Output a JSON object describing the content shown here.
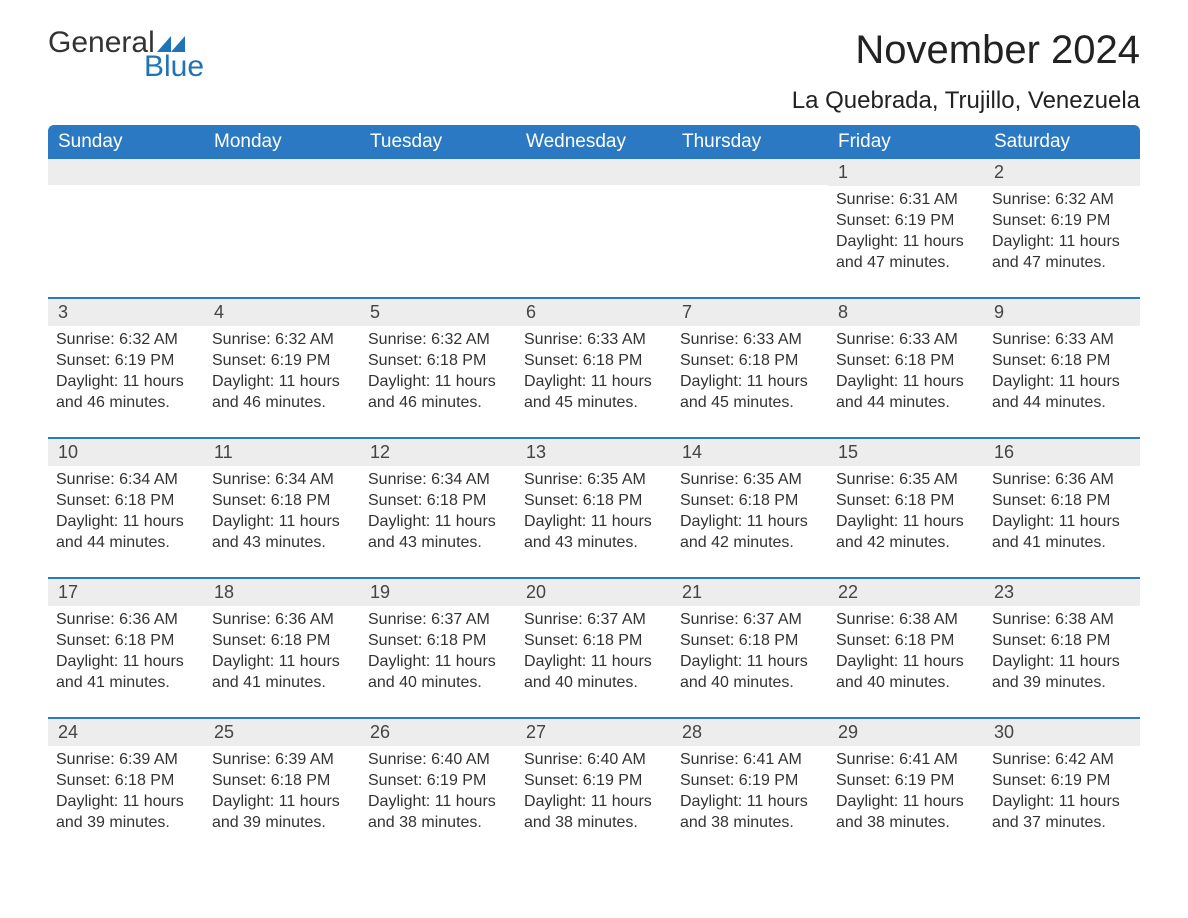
{
  "logo": {
    "text1": "General",
    "text2": "Blue",
    "color1": "#333333",
    "color2": "#1f73b7"
  },
  "title": "November 2024",
  "location": "La Quebrada, Trujillo, Venezuela",
  "colors": {
    "header_bg": "#2b79c2",
    "header_text": "#ffffff",
    "row_divider": "#2b79c2",
    "daynum_bg": "#ededed",
    "text": "#333333",
    "background": "#ffffff"
  },
  "font": {
    "family": "Arial",
    "title_size_pt": 30,
    "location_size_pt": 18,
    "body_size_pt": 12
  },
  "daysOfWeek": [
    "Sunday",
    "Monday",
    "Tuesday",
    "Wednesday",
    "Thursday",
    "Friday",
    "Saturday"
  ],
  "weeks": [
    [
      null,
      null,
      null,
      null,
      null,
      {
        "day": "1",
        "sunrise": "Sunrise: 6:31 AM",
        "sunset": "Sunset: 6:19 PM",
        "daylight": "Daylight: 11 hours and 47 minutes."
      },
      {
        "day": "2",
        "sunrise": "Sunrise: 6:32 AM",
        "sunset": "Sunset: 6:19 PM",
        "daylight": "Daylight: 11 hours and 47 minutes."
      }
    ],
    [
      {
        "day": "3",
        "sunrise": "Sunrise: 6:32 AM",
        "sunset": "Sunset: 6:19 PM",
        "daylight": "Daylight: 11 hours and 46 minutes."
      },
      {
        "day": "4",
        "sunrise": "Sunrise: 6:32 AM",
        "sunset": "Sunset: 6:19 PM",
        "daylight": "Daylight: 11 hours and 46 minutes."
      },
      {
        "day": "5",
        "sunrise": "Sunrise: 6:32 AM",
        "sunset": "Sunset: 6:18 PM",
        "daylight": "Daylight: 11 hours and 46 minutes."
      },
      {
        "day": "6",
        "sunrise": "Sunrise: 6:33 AM",
        "sunset": "Sunset: 6:18 PM",
        "daylight": "Daylight: 11 hours and 45 minutes."
      },
      {
        "day": "7",
        "sunrise": "Sunrise: 6:33 AM",
        "sunset": "Sunset: 6:18 PM",
        "daylight": "Daylight: 11 hours and 45 minutes."
      },
      {
        "day": "8",
        "sunrise": "Sunrise: 6:33 AM",
        "sunset": "Sunset: 6:18 PM",
        "daylight": "Daylight: 11 hours and 44 minutes."
      },
      {
        "day": "9",
        "sunrise": "Sunrise: 6:33 AM",
        "sunset": "Sunset: 6:18 PM",
        "daylight": "Daylight: 11 hours and 44 minutes."
      }
    ],
    [
      {
        "day": "10",
        "sunrise": "Sunrise: 6:34 AM",
        "sunset": "Sunset: 6:18 PM",
        "daylight": "Daylight: 11 hours and 44 minutes."
      },
      {
        "day": "11",
        "sunrise": "Sunrise: 6:34 AM",
        "sunset": "Sunset: 6:18 PM",
        "daylight": "Daylight: 11 hours and 43 minutes."
      },
      {
        "day": "12",
        "sunrise": "Sunrise: 6:34 AM",
        "sunset": "Sunset: 6:18 PM",
        "daylight": "Daylight: 11 hours and 43 minutes."
      },
      {
        "day": "13",
        "sunrise": "Sunrise: 6:35 AM",
        "sunset": "Sunset: 6:18 PM",
        "daylight": "Daylight: 11 hours and 43 minutes."
      },
      {
        "day": "14",
        "sunrise": "Sunrise: 6:35 AM",
        "sunset": "Sunset: 6:18 PM",
        "daylight": "Daylight: 11 hours and 42 minutes."
      },
      {
        "day": "15",
        "sunrise": "Sunrise: 6:35 AM",
        "sunset": "Sunset: 6:18 PM",
        "daylight": "Daylight: 11 hours and 42 minutes."
      },
      {
        "day": "16",
        "sunrise": "Sunrise: 6:36 AM",
        "sunset": "Sunset: 6:18 PM",
        "daylight": "Daylight: 11 hours and 41 minutes."
      }
    ],
    [
      {
        "day": "17",
        "sunrise": "Sunrise: 6:36 AM",
        "sunset": "Sunset: 6:18 PM",
        "daylight": "Daylight: 11 hours and 41 minutes."
      },
      {
        "day": "18",
        "sunrise": "Sunrise: 6:36 AM",
        "sunset": "Sunset: 6:18 PM",
        "daylight": "Daylight: 11 hours and 41 minutes."
      },
      {
        "day": "19",
        "sunrise": "Sunrise: 6:37 AM",
        "sunset": "Sunset: 6:18 PM",
        "daylight": "Daylight: 11 hours and 40 minutes."
      },
      {
        "day": "20",
        "sunrise": "Sunrise: 6:37 AM",
        "sunset": "Sunset: 6:18 PM",
        "daylight": "Daylight: 11 hours and 40 minutes."
      },
      {
        "day": "21",
        "sunrise": "Sunrise: 6:37 AM",
        "sunset": "Sunset: 6:18 PM",
        "daylight": "Daylight: 11 hours and 40 minutes."
      },
      {
        "day": "22",
        "sunrise": "Sunrise: 6:38 AM",
        "sunset": "Sunset: 6:18 PM",
        "daylight": "Daylight: 11 hours and 40 minutes."
      },
      {
        "day": "23",
        "sunrise": "Sunrise: 6:38 AM",
        "sunset": "Sunset: 6:18 PM",
        "daylight": "Daylight: 11 hours and 39 minutes."
      }
    ],
    [
      {
        "day": "24",
        "sunrise": "Sunrise: 6:39 AM",
        "sunset": "Sunset: 6:18 PM",
        "daylight": "Daylight: 11 hours and 39 minutes."
      },
      {
        "day": "25",
        "sunrise": "Sunrise: 6:39 AM",
        "sunset": "Sunset: 6:18 PM",
        "daylight": "Daylight: 11 hours and 39 minutes."
      },
      {
        "day": "26",
        "sunrise": "Sunrise: 6:40 AM",
        "sunset": "Sunset: 6:19 PM",
        "daylight": "Daylight: 11 hours and 38 minutes."
      },
      {
        "day": "27",
        "sunrise": "Sunrise: 6:40 AM",
        "sunset": "Sunset: 6:19 PM",
        "daylight": "Daylight: 11 hours and 38 minutes."
      },
      {
        "day": "28",
        "sunrise": "Sunrise: 6:41 AM",
        "sunset": "Sunset: 6:19 PM",
        "daylight": "Daylight: 11 hours and 38 minutes."
      },
      {
        "day": "29",
        "sunrise": "Sunrise: 6:41 AM",
        "sunset": "Sunset: 6:19 PM",
        "daylight": "Daylight: 11 hours and 38 minutes."
      },
      {
        "day": "30",
        "sunrise": "Sunrise: 6:42 AM",
        "sunset": "Sunset: 6:19 PM",
        "daylight": "Daylight: 11 hours and 37 minutes."
      }
    ]
  ]
}
